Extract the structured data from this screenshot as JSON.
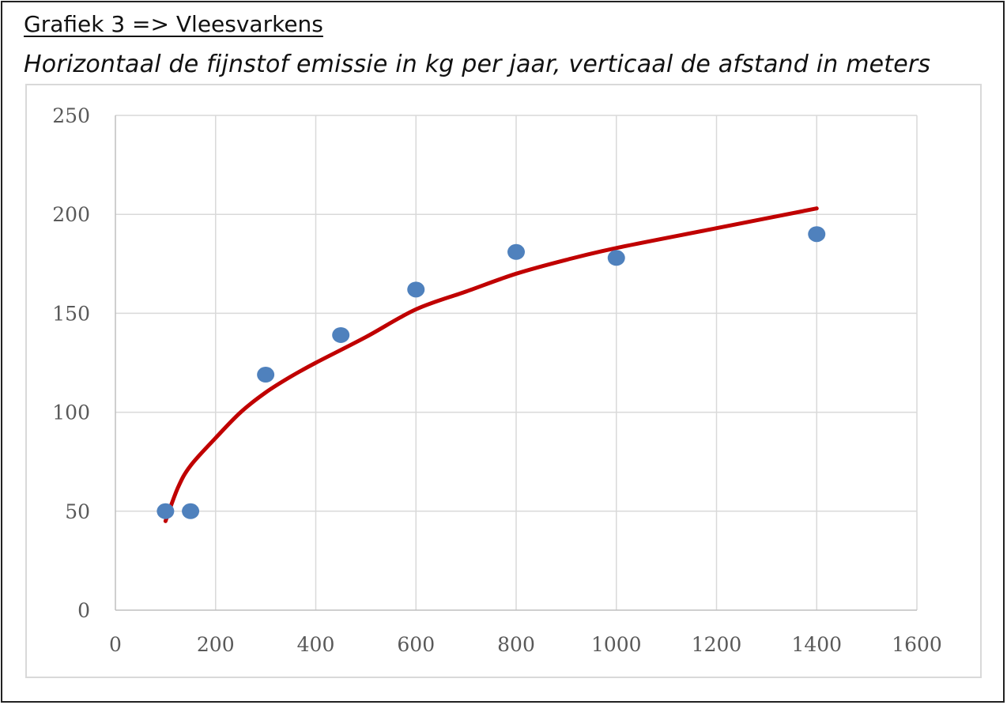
{
  "header": {
    "title": "Grafiek 3 => Vleesvarkens",
    "subtitle": "Horizontaal de fijnstof emissie in kg per jaar, verticaal de afstand in meters"
  },
  "chart_data": {
    "type": "scatter",
    "xlabel": "",
    "ylabel": "",
    "xlim": [
      0,
      1600
    ],
    "ylim": [
      0,
      250
    ],
    "x_ticks": [
      "0",
      "200",
      "400",
      "600",
      "800",
      "1000",
      "1200",
      "1400",
      "1600"
    ],
    "y_ticks": [
      "0",
      "50",
      "100",
      "150",
      "200",
      "250"
    ],
    "grid": true,
    "series": [
      {
        "type": "scatter",
        "color": "#4f81bd",
        "points": [
          {
            "x": 100,
            "y": 50
          },
          {
            "x": 150,
            "y": 50
          },
          {
            "x": 300,
            "y": 119
          },
          {
            "x": 450,
            "y": 139
          },
          {
            "x": 600,
            "y": 162
          },
          {
            "x": 800,
            "y": 181
          },
          {
            "x": 1000,
            "y": 178
          },
          {
            "x": 1400,
            "y": 190
          }
        ]
      },
      {
        "type": "line",
        "color": "#c00000",
        "points": [
          {
            "x": 100,
            "y": 45
          },
          {
            "x": 125,
            "y": 62
          },
          {
            "x": 150,
            "y": 73
          },
          {
            "x": 200,
            "y": 87
          },
          {
            "x": 250,
            "y": 100
          },
          {
            "x": 300,
            "y": 110
          },
          {
            "x": 350,
            "y": 118
          },
          {
            "x": 400,
            "y": 125
          },
          {
            "x": 500,
            "y": 138
          },
          {
            "x": 600,
            "y": 152
          },
          {
            "x": 700,
            "y": 161
          },
          {
            "x": 800,
            "y": 170
          },
          {
            "x": 900,
            "y": 177
          },
          {
            "x": 1000,
            "y": 183
          },
          {
            "x": 1200,
            "y": 193
          },
          {
            "x": 1400,
            "y": 203
          }
        ]
      }
    ]
  }
}
